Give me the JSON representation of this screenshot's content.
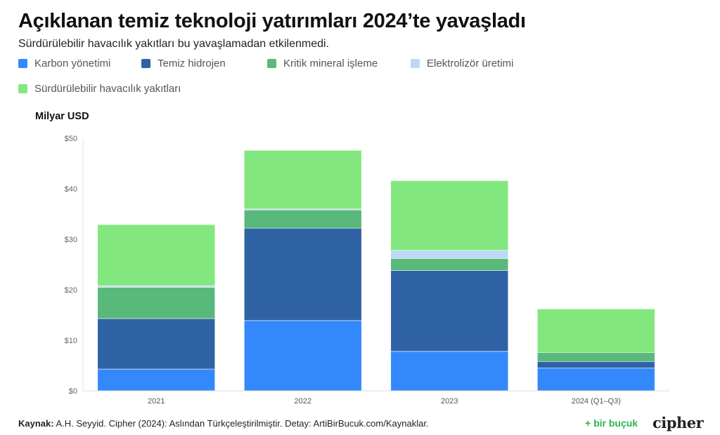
{
  "title": "Açıklanan temiz teknoloji yatırımları 2024’te yavaşladı",
  "subtitle": "Sürdürülebilir havacılık yakıtları bu yavaşlamadan etkilenmedi.",
  "unit_label": "Milyar USD",
  "footer": {
    "source_label": "Kaynak:",
    "source_text": " A.H. Seyyid. Cipher (2024): Aslından Türkçeleştirilmiştir. Detay: ArtiBirBucuk.com/Kaynaklar."
  },
  "logos": {
    "birbucuk": "+ bir buçuk",
    "cipher": "cipher"
  },
  "chart_data": {
    "type": "bar",
    "stacked": true,
    "categories": [
      "2021",
      "2022",
      "2023",
      "2024 (Q1–Q3)"
    ],
    "series": [
      {
        "name": "Karbon yönetimi",
        "color": "#3389fb",
        "values": [
          4.3,
          13.9,
          7.8,
          4.5
        ]
      },
      {
        "name": "Temiz hidrojen",
        "color": "#2f62a5",
        "values": [
          10.0,
          18.3,
          16.0,
          1.3
        ]
      },
      {
        "name": "Kritik mineral işleme",
        "color": "#58b97a",
        "values": [
          6.2,
          3.6,
          2.4,
          1.8
        ]
      },
      {
        "name": "Elektrolizör üretimi",
        "color": "#bcd8f6",
        "values": [
          0.3,
          0.2,
          1.6,
          0.0
        ]
      },
      {
        "name": "Sürdürülebilir havacılık yakıtları",
        "color": "#82e77e",
        "values": [
          12.1,
          11.6,
          13.8,
          8.6
        ]
      }
    ],
    "ylim": [
      0,
      50
    ],
    "yticks": [
      "$0",
      "$10",
      "$20",
      "$30",
      "$40",
      "$50"
    ],
    "ytick_values": [
      0,
      10,
      20,
      30,
      40,
      50
    ],
    "grid": false,
    "legend_position": "top"
  }
}
